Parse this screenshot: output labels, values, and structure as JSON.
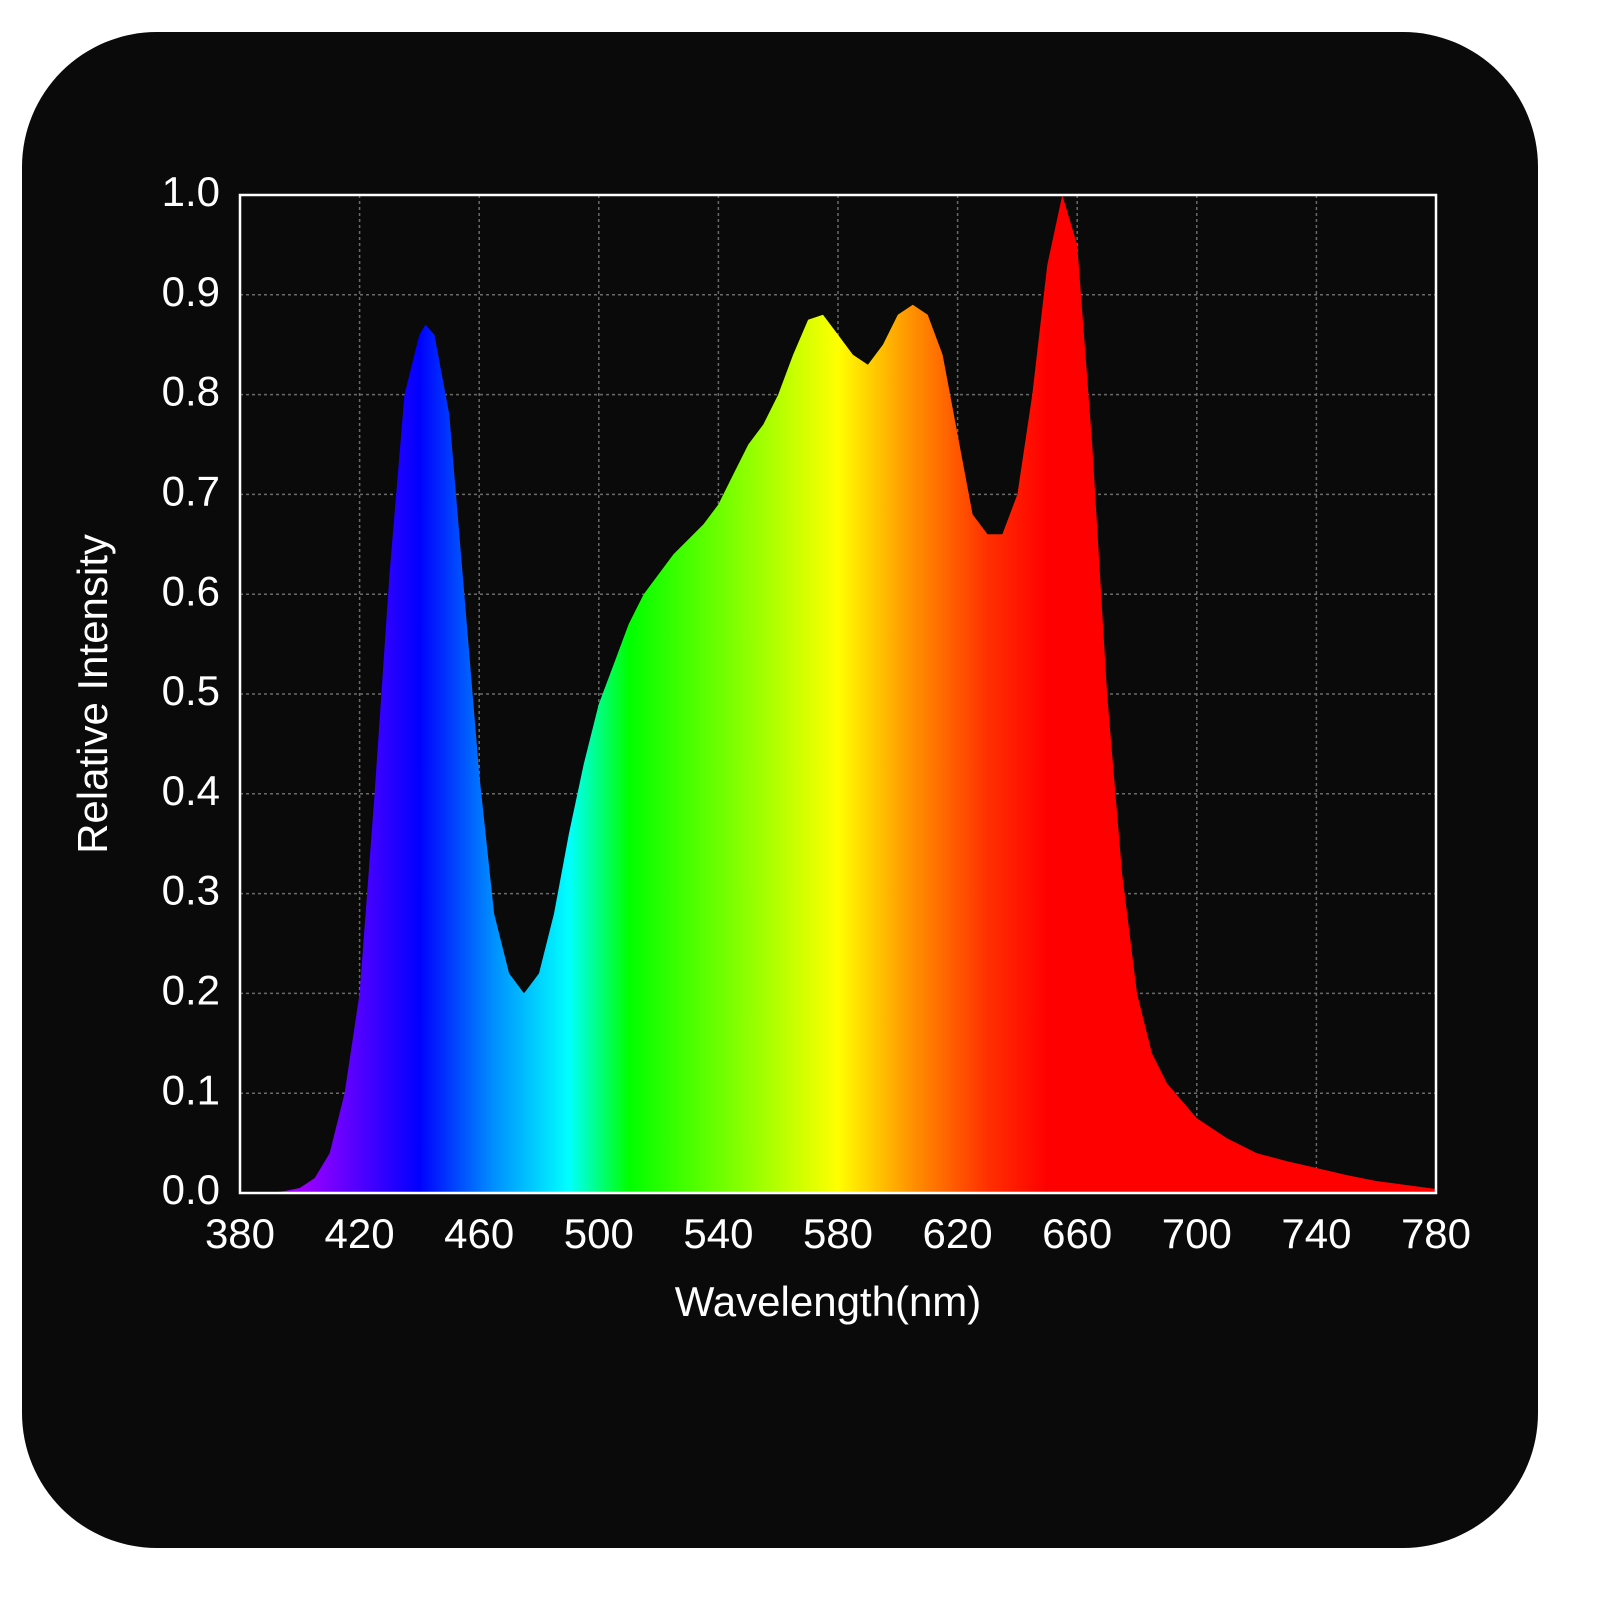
{
  "chart_data": {
    "type": "area",
    "xlabel": "Wavelength(nm)",
    "ylabel": "Relative Intensity",
    "x": [
      380,
      390,
      395,
      400,
      405,
      410,
      415,
      420,
      425,
      430,
      435,
      440,
      442,
      445,
      450,
      455,
      460,
      465,
      470,
      475,
      480,
      485,
      490,
      495,
      500,
      505,
      510,
      515,
      520,
      525,
      530,
      535,
      540,
      545,
      550,
      555,
      560,
      565,
      570,
      575,
      580,
      585,
      590,
      595,
      600,
      605,
      610,
      615,
      620,
      625,
      630,
      635,
      640,
      645,
      650,
      655,
      660,
      665,
      670,
      675,
      680,
      685,
      690,
      700,
      710,
      720,
      730,
      740,
      750,
      760,
      770,
      780
    ],
    "values": [
      0,
      0,
      0.002,
      0.005,
      0.015,
      0.04,
      0.1,
      0.2,
      0.4,
      0.62,
      0.8,
      0.86,
      0.87,
      0.86,
      0.78,
      0.6,
      0.42,
      0.28,
      0.22,
      0.2,
      0.22,
      0.28,
      0.36,
      0.43,
      0.49,
      0.53,
      0.57,
      0.6,
      0.62,
      0.64,
      0.655,
      0.67,
      0.69,
      0.72,
      0.75,
      0.77,
      0.8,
      0.84,
      0.875,
      0.88,
      0.86,
      0.84,
      0.83,
      0.85,
      0.88,
      0.89,
      0.88,
      0.84,
      0.76,
      0.68,
      0.66,
      0.66,
      0.7,
      0.8,
      0.93,
      1.0,
      0.95,
      0.75,
      0.5,
      0.32,
      0.2,
      0.14,
      0.11,
      0.075,
      0.055,
      0.04,
      0.032,
      0.025,
      0.018,
      0.012,
      0.008,
      0.004
    ],
    "color_stops": [
      {
        "x": 400,
        "color": "#a000ff"
      },
      {
        "x": 420,
        "color": "#5000ff"
      },
      {
        "x": 440,
        "color": "#0000ff"
      },
      {
        "x": 465,
        "color": "#0090ff"
      },
      {
        "x": 490,
        "color": "#00ffff"
      },
      {
        "x": 510,
        "color": "#00ff00"
      },
      {
        "x": 550,
        "color": "#90ff00"
      },
      {
        "x": 580,
        "color": "#ffff00"
      },
      {
        "x": 605,
        "color": "#ff9000"
      },
      {
        "x": 630,
        "color": "#ff3000"
      },
      {
        "x": 650,
        "color": "#ff0000"
      }
    ],
    "xlim": [
      380,
      780
    ],
    "xticks": [
      380,
      420,
      460,
      500,
      540,
      580,
      620,
      660,
      700,
      740,
      780
    ],
    "ylim": [
      0,
      1
    ],
    "yticks": [
      {
        "value": 0,
        "label": "0.0"
      },
      0.1,
      0.2,
      0.3,
      0.4,
      0.5,
      0.6,
      0.7,
      0.8,
      0.9,
      {
        "value": 1,
        "label": "1.0"
      }
    ],
    "grid": true
  }
}
